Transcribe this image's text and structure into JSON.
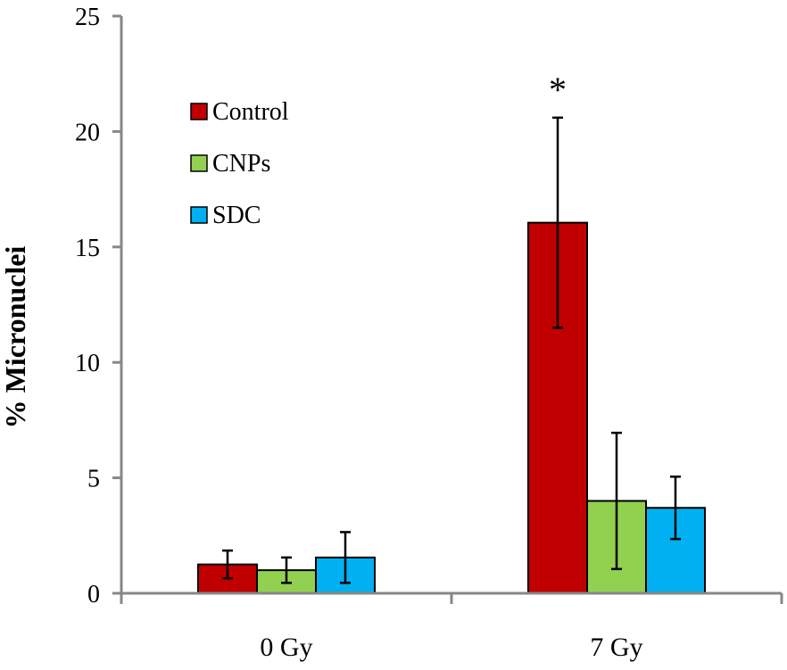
{
  "chart_data": {
    "type": "bar",
    "title": "",
    "xlabel": "",
    "ylabel": "% Micronuclei",
    "ylim": [
      0,
      25
    ],
    "yticks": [
      0,
      5,
      10,
      15,
      20,
      25
    ],
    "categories": [
      "0 Gy",
      "7 Gy"
    ],
    "series": [
      {
        "name": "Control",
        "color": "#c00000",
        "values": [
          1.25,
          16.05
        ],
        "errors": [
          0.6,
          4.55
        ]
      },
      {
        "name": "CNPs",
        "color": "#92d050",
        "values": [
          1.0,
          4.0
        ],
        "errors": [
          0.55,
          2.95
        ]
      },
      {
        "name": "SDC",
        "color": "#00b0f0",
        "values": [
          1.55,
          3.7
        ],
        "errors": [
          1.1,
          1.35
        ]
      }
    ],
    "legend_position": "top-left",
    "annotations": [
      {
        "text": "*",
        "category": "7 Gy",
        "series": "Control"
      }
    ]
  }
}
